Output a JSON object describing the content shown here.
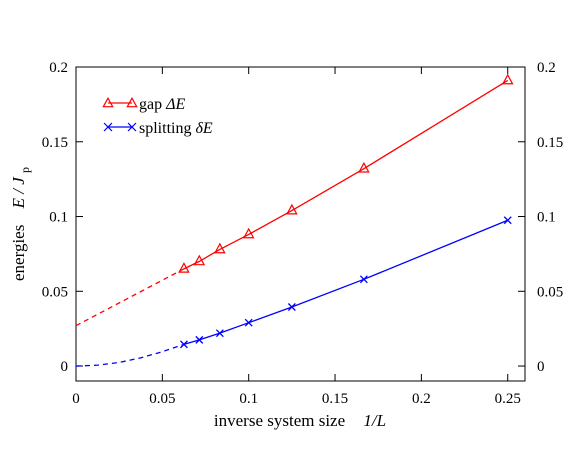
{
  "chart_data": {
    "type": "line",
    "xlabel": "inverse system size",
    "xlabel_var": "1/L",
    "ylabel": "energies",
    "ylabel_var": "E / J",
    "ylabel_sub": "p",
    "xlim": [
      0,
      0.26
    ],
    "ylim": [
      -0.01,
      0.2
    ],
    "xticks": [
      0,
      0.05,
      0.1,
      0.15,
      0.2,
      0.25
    ],
    "xtick_labels": [
      "0",
      "0.05",
      "0.1",
      "0.15",
      "0.2",
      "0.25"
    ],
    "yticks": [
      0,
      0.05,
      0.1,
      0.15,
      0.2
    ],
    "ytick_labels": [
      "0",
      "0.05",
      "0.1",
      "0.15",
      "0.2"
    ],
    "grid": false,
    "legend_position": "top-left",
    "series": [
      {
        "name": "gap ΔE",
        "legend_prefix": "gap ",
        "legend_symbol": "ΔE",
        "color": "#ff0000",
        "marker": "triangle",
        "x": [
          0.0625,
          0.0714,
          0.0833,
          0.1,
          0.125,
          0.1667,
          0.25
        ],
        "y": [
          0.065,
          0.07,
          0.078,
          0.088,
          0.104,
          0.132,
          0.191
        ],
        "extrapolation": {
          "x": [
            0,
            0.0625
          ],
          "y": [
            0.027,
            0.065
          ],
          "style": "dashed"
        }
      },
      {
        "name": "splitting δE",
        "legend_prefix": "splitting ",
        "legend_symbol": "δE",
        "color": "#0000ff",
        "marker": "x",
        "x": [
          0.0625,
          0.0714,
          0.0833,
          0.1,
          0.125,
          0.1667,
          0.25
        ],
        "y": [
          0.0145,
          0.0175,
          0.022,
          0.029,
          0.0395,
          0.058,
          0.0975
        ],
        "extrapolation": {
          "x": [
            0,
            0.0125,
            0.025,
            0.0375,
            0.05,
            0.0625
          ],
          "y": [
            0,
            0.0006,
            0.0024,
            0.0055,
            0.0096,
            0.0145
          ],
          "style": "dashed"
        }
      }
    ]
  }
}
